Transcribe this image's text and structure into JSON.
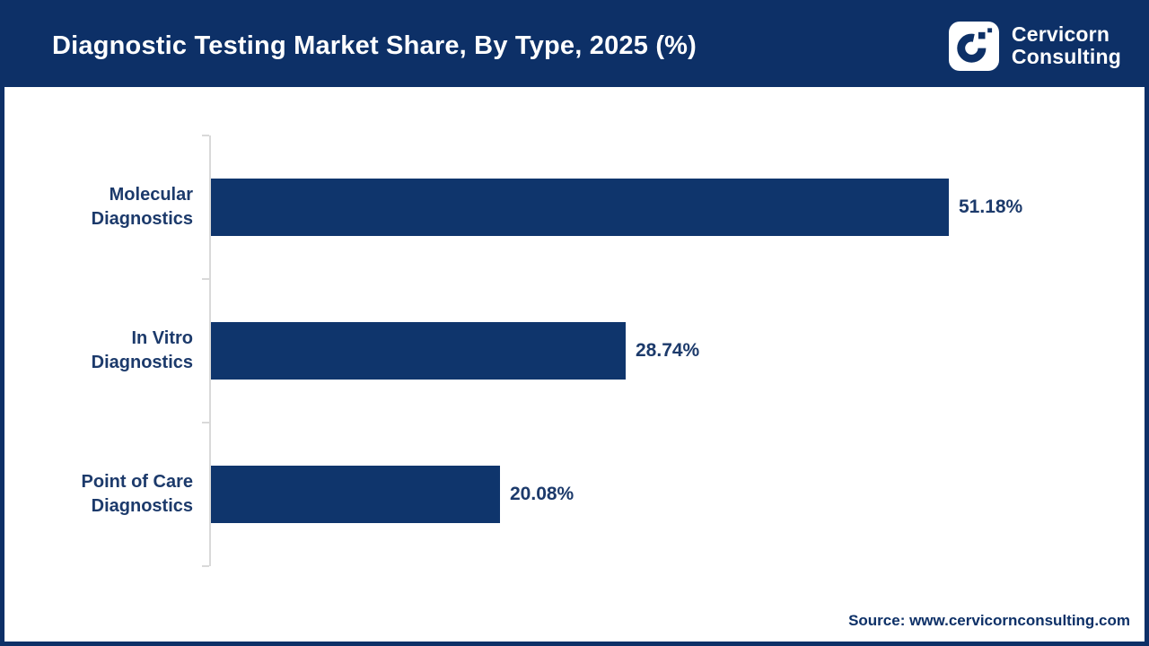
{
  "header": {
    "title": "Diagnostic Testing Market Share, By Type, 2025 (%)",
    "logo_line1": "Cervicorn",
    "logo_line2": "Consulting"
  },
  "chart_data": {
    "type": "bar",
    "orientation": "horizontal",
    "title": "Diagnostic Testing Market Share, By Type, 2025 (%)",
    "categories": [
      "Molecular Diagnostics",
      "In Vitro Diagnostics",
      "Point of Care Diagnostics"
    ],
    "values": [
      51.18,
      28.74,
      20.08
    ],
    "value_labels": [
      "51.18%",
      "28.74%",
      "20.08%"
    ],
    "xlabel": "",
    "ylabel": "",
    "xlim": [
      0,
      55
    ],
    "grid": false,
    "legend": false,
    "bar_color": "#0f356c"
  },
  "bars": [
    {
      "label_line1": "Molecular",
      "label_line2": "Diagnostics",
      "value": 51.18,
      "value_label": "51.18%"
    },
    {
      "label_line1": "In Vitro",
      "label_line2": "Diagnostics",
      "value": 28.74,
      "value_label": "28.74%"
    },
    {
      "label_line1": "Point of Care",
      "label_line2": "Diagnostics",
      "value": 20.08,
      "value_label": "20.08%"
    }
  ],
  "footer": {
    "source": "Source: www.cervicornconsulting.com"
  },
  "colors": {
    "header_bg": "#0d3067",
    "border": "#0d3067",
    "bar_fill": "#0f356c",
    "label_text": "#1c3a6b",
    "axis_line": "#d9d9d9",
    "title_text": "#ffffff",
    "source_text": "#0d3067"
  }
}
